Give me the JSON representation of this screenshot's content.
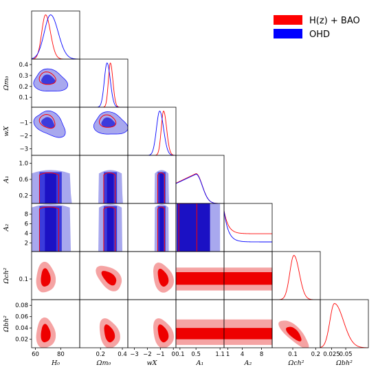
{
  "chart_data": {
    "type": "corner",
    "params": [
      {
        "key": "H0",
        "label": "H₀"
      },
      {
        "key": "Om",
        "label": "Ωm₀"
      },
      {
        "key": "wx",
        "label": "wX"
      },
      {
        "key": "A1",
        "label": "A₁"
      },
      {
        "key": "A2",
        "label": "A₂"
      },
      {
        "key": "Och2",
        "label": "Ωch²"
      },
      {
        "key": "Obh2",
        "label": "Ωbh²"
      }
    ],
    "ranges": {
      "H0": [
        57,
        95
      ],
      "Om": [
        0.01,
        0.45
      ],
      "wx": [
        -3.5,
        0.2
      ],
      "A1": [
        0.0,
        1.2
      ],
      "A2": [
        0.2,
        10.2
      ],
      "Och2": [
        0.01,
        0.22
      ],
      "Obh2": [
        0.005,
        0.09
      ]
    },
    "x_ticks": {
      "H0": [
        {
          "v": 60,
          "t": "60"
        },
        {
          "v": 80,
          "t": "80"
        }
      ],
      "Om": [
        {
          "v": 0.2,
          "t": "0.2"
        },
        {
          "v": 0.4,
          "t": "0.4"
        }
      ],
      "wx": [
        {
          "v": -3,
          "t": "−3"
        },
        {
          "v": -2,
          "t": "−2"
        },
        {
          "v": -1,
          "t": "−1"
        },
        {
          "v": 0,
          "t": "0"
        }
      ],
      "A1": [
        {
          "v": 0.1,
          "t": "0.1"
        },
        {
          "v": 0.5,
          "t": "0.5"
        },
        {
          "v": 1.1,
          "t": "1.1"
        }
      ],
      "A2": [
        {
          "v": 1,
          "t": "1"
        },
        {
          "v": 4,
          "t": "4"
        },
        {
          "v": 8,
          "t": "8"
        }
      ],
      "Och2": [
        {
          "v": 0.1,
          "t": "0.1"
        },
        {
          "v": 0.2,
          "t": "0.2"
        }
      ],
      "Obh2": [
        {
          "v": 0.025,
          "t": "0.025"
        },
        {
          "v": 0.05,
          "t": "0.05"
        }
      ]
    },
    "y_ticks": {
      "Om": [
        {
          "v": 0.1,
          "t": "0.1"
        },
        {
          "v": 0.2,
          "t": "0.2"
        },
        {
          "v": 0.3,
          "t": "0.3"
        },
        {
          "v": 0.4,
          "t": "0.4"
        }
      ],
      "wx": [
        {
          "v": -3,
          "t": "−3"
        },
        {
          "v": -2,
          "t": "−2"
        },
        {
          "v": -1,
          "t": "−1"
        }
      ],
      "A1": [
        {
          "v": 0.2,
          "t": "0.2"
        },
        {
          "v": 0.6,
          "t": "0.6"
        },
        {
          "v": 1.0,
          "t": "1.0"
        }
      ],
      "A2": [
        {
          "v": 2,
          "t": "2"
        },
        {
          "v": 4,
          "t": "4"
        },
        {
          "v": 6,
          "t": "6"
        },
        {
          "v": 8,
          "t": "8"
        }
      ],
      "Och2": [
        {
          "v": 0.1,
          "t": "0.1"
        }
      ],
      "Obh2": [
        {
          "v": 0.02,
          "t": "0.02"
        },
        {
          "v": 0.04,
          "t": "0.04"
        },
        {
          "v": 0.06,
          "t": "0.06"
        },
        {
          "v": 0.08,
          "t": "0.08"
        }
      ]
    },
    "series": [
      {
        "name": "H(z) + BAO",
        "color": "#ff0000",
        "color_light": "#f5a3a3",
        "color_dark": "#ee0000",
        "style": "filled"
      },
      {
        "name": "OHD",
        "color": "#0000ff",
        "color_light": "#a8a8ee",
        "color_dark": "#3b3bdc",
        "style": "filled"
      }
    ],
    "legend_placement": "top-right",
    "grid": false
  }
}
